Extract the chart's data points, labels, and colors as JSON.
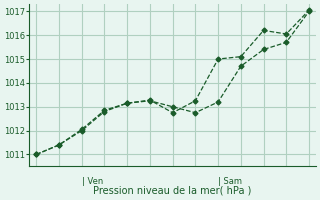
{
  "background_color": "#e8f5f0",
  "grid_color": "#b0d0c0",
  "line_color": "#1a5c2a",
  "title": "Pression niveau de la mer( hPa )",
  "ylim": [
    1010.5,
    1017.3
  ],
  "yticks": [
    1011,
    1012,
    1013,
    1014,
    1015,
    1016,
    1017
  ],
  "x_ven": 2,
  "x_sam": 8,
  "xlim": [
    -0.3,
    12.3
  ],
  "line1_x": [
    0,
    1,
    2,
    3,
    4,
    5,
    6,
    7,
    8,
    9,
    10,
    11,
    12
  ],
  "line1_y": [
    1011.0,
    1011.4,
    1012.0,
    1012.8,
    1013.15,
    1013.25,
    1013.0,
    1012.75,
    1013.2,
    1014.7,
    1015.4,
    1015.7,
    1017.0
  ],
  "line2_x": [
    0,
    1,
    2,
    3,
    4,
    5,
    6,
    7,
    8,
    9,
    10,
    11,
    12
  ],
  "line2_y": [
    1011.0,
    1011.4,
    1012.05,
    1012.85,
    1013.15,
    1013.28,
    1012.75,
    1013.25,
    1015.0,
    1015.1,
    1016.2,
    1016.05,
    1017.05
  ]
}
